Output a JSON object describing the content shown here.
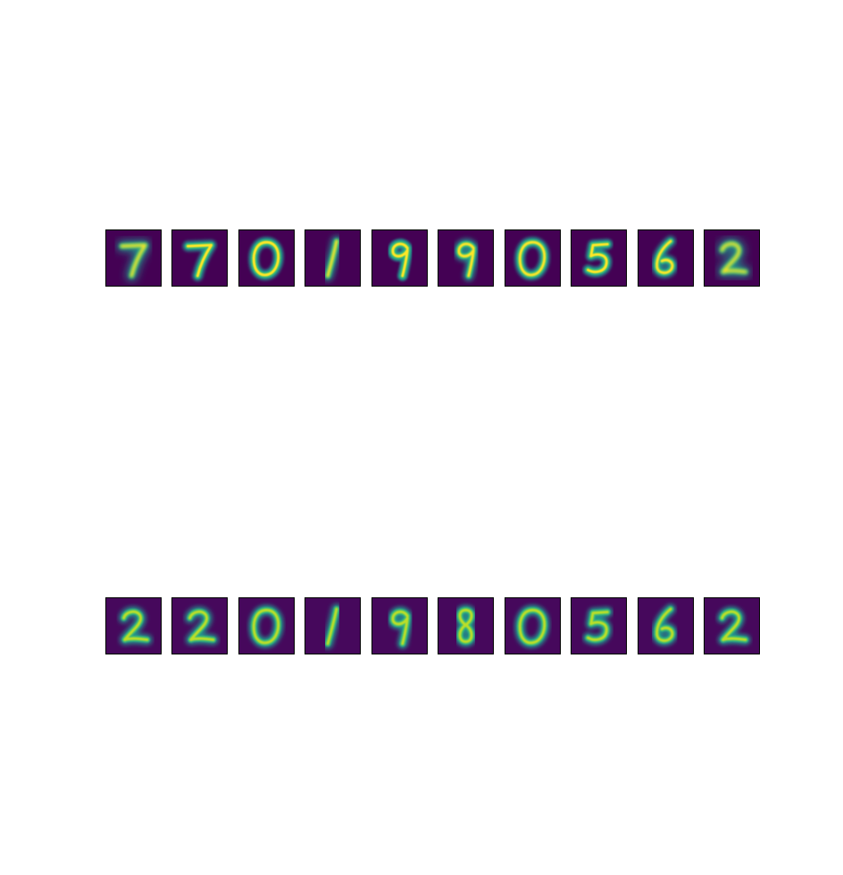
{
  "colors": {
    "background": "#440154",
    "background_alt": "#46085c",
    "glow": "#21918c",
    "mid": "#35b779",
    "bright": "#bddf26",
    "peak": "#fde725"
  },
  "rows": [
    {
      "name": "input-row",
      "digits": [
        "7",
        "7",
        "0",
        "1",
        "9",
        "9",
        "0",
        "5",
        "6",
        "2"
      ],
      "blur": [
        2.2,
        0.8,
        0.7,
        1.6,
        0.6,
        1.2,
        0.9,
        0.7,
        1.0,
        2.4
      ]
    },
    {
      "name": "reconstruction-row",
      "digits": [
        "2",
        "2",
        "0",
        "1",
        "9",
        "8",
        "0",
        "5",
        "6",
        "2"
      ],
      "blur": [
        1.2,
        1.2,
        1.1,
        1.2,
        1.1,
        1.1,
        1.1,
        1.1,
        1.1,
        1.1
      ]
    }
  ]
}
